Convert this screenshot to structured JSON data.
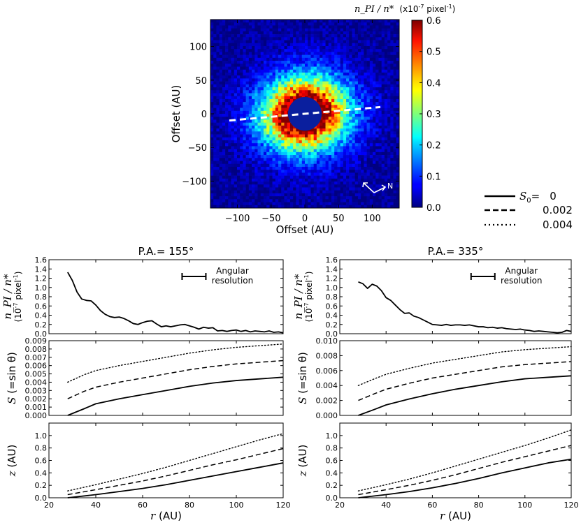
{
  "image_panel": {
    "xlabel": "Offset (AU)",
    "ylabel": "Offset (AU)",
    "xticks": [
      -100,
      -50,
      0,
      50,
      100
    ],
    "yticks": [
      -100,
      -50,
      0,
      50,
      100
    ],
    "xlim": [
      -140,
      140
    ],
    "ylim": [
      -140,
      140
    ],
    "mask_radius_au": 25,
    "compass_label": "N",
    "colorbar": {
      "label_main": "n_PI / n*",
      "label_unit_pre": "(x10",
      "label_unit_exp": "-7",
      "label_unit_mid": " pixel",
      "label_unit_exp2": "-1",
      "label_unit_post": ")",
      "range": [
        0.0,
        0.6
      ],
      "ticks": [
        "0.0",
        "0.1",
        "0.2",
        "0.3",
        "0.4",
        "0.5",
        "0.6"
      ]
    }
  },
  "legend": {
    "title_var": "S",
    "title_sub": "0",
    "title_eq": "=",
    "entries": [
      {
        "style": "solid",
        "label": "0"
      },
      {
        "style": "dashed",
        "label": "0.002"
      },
      {
        "style": "dotted",
        "label": "0.004"
      }
    ]
  },
  "chart_data": [
    {
      "type": "line",
      "panel": "left-top",
      "title": "P.A.= 155°",
      "ylabel_main": "n_PI / n*",
      "ylabel_unit": "(10-7 pixel-1)",
      "annotation": "Angular resolution",
      "xlim": [
        20,
        120
      ],
      "ylim": [
        0,
        1.6
      ],
      "yticks": [
        "0.0",
        "0.2",
        "0.4",
        "0.6",
        "0.8",
        "1.0",
        "1.2",
        "1.4",
        "1.6"
      ],
      "series": [
        {
          "name": "n_PI",
          "style": "solid",
          "x": [
            28,
            30,
            32,
            34,
            36,
            38,
            40,
            42,
            44,
            46,
            48,
            50,
            52,
            54,
            56,
            58,
            60,
            62,
            64,
            66,
            68,
            70,
            72,
            74,
            76,
            78,
            80,
            82,
            84,
            86,
            88,
            90,
            92,
            94,
            96,
            98,
            100,
            102,
            104,
            106,
            108,
            110,
            112,
            114,
            116,
            118,
            120
          ],
          "y": [
            1.33,
            1.15,
            0.9,
            0.75,
            0.72,
            0.71,
            0.62,
            0.5,
            0.42,
            0.37,
            0.35,
            0.36,
            0.33,
            0.28,
            0.22,
            0.2,
            0.24,
            0.27,
            0.28,
            0.21,
            0.15,
            0.17,
            0.15,
            0.17,
            0.19,
            0.2,
            0.17,
            0.14,
            0.1,
            0.14,
            0.12,
            0.13,
            0.06,
            0.07,
            0.05,
            0.07,
            0.08,
            0.05,
            0.07,
            0.04,
            0.06,
            0.05,
            0.04,
            0.06,
            0.03,
            0.04,
            0.02
          ]
        }
      ]
    },
    {
      "type": "line",
      "panel": "left-middle",
      "ylabel": "S (=sin θ)",
      "xlim": [
        20,
        120
      ],
      "ylim": [
        0,
        0.009
      ],
      "yticks": [
        "0.000",
        "0.001",
        "0.002",
        "0.003",
        "0.004",
        "0.005",
        "0.006",
        "0.007",
        "0.008",
        "0.009"
      ],
      "series": [
        {
          "name": "S0=0",
          "style": "solid",
          "x": [
            28,
            35,
            40,
            50,
            60,
            70,
            80,
            90,
            100,
            110,
            120
          ],
          "y": [
            0.0,
            0.0008,
            0.0014,
            0.002,
            0.0025,
            0.003,
            0.0035,
            0.0039,
            0.0042,
            0.0044,
            0.0046
          ]
        },
        {
          "name": "S0=0.002",
          "style": "dashed",
          "x": [
            28,
            35,
            40,
            50,
            60,
            70,
            80,
            90,
            100,
            110,
            120
          ],
          "y": [
            0.002,
            0.0029,
            0.0034,
            0.004,
            0.0045,
            0.005,
            0.0055,
            0.0059,
            0.0062,
            0.0064,
            0.0066
          ]
        },
        {
          "name": "S0=0.004",
          "style": "dotted",
          "x": [
            28,
            35,
            40,
            50,
            60,
            70,
            80,
            90,
            100,
            110,
            120
          ],
          "y": [
            0.004,
            0.0049,
            0.0054,
            0.006,
            0.0065,
            0.007,
            0.0075,
            0.0079,
            0.0082,
            0.0084,
            0.0086
          ]
        }
      ]
    },
    {
      "type": "line",
      "panel": "left-bottom",
      "ylabel": "z (AU)",
      "xlabel": "r (AU)",
      "xlim": [
        20,
        120
      ],
      "ylim": [
        0,
        1.2
      ],
      "xticks": [
        "20",
        "40",
        "60",
        "80",
        "100",
        "120"
      ],
      "yticks": [
        "0.0",
        "0.2",
        "0.4",
        "0.6",
        "0.8",
        "1.0"
      ],
      "series": [
        {
          "name": "S0=0",
          "style": "solid",
          "x": [
            28,
            40,
            50,
            60,
            70,
            80,
            90,
            100,
            110,
            120
          ],
          "y": [
            0.0,
            0.05,
            0.1,
            0.15,
            0.21,
            0.28,
            0.35,
            0.42,
            0.49,
            0.56
          ]
        },
        {
          "name": "S0=0.002",
          "style": "dashed",
          "x": [
            28,
            40,
            50,
            60,
            70,
            80,
            90,
            100,
            110,
            120
          ],
          "y": [
            0.05,
            0.13,
            0.2,
            0.27,
            0.35,
            0.44,
            0.53,
            0.61,
            0.7,
            0.79
          ]
        },
        {
          "name": "S0=0.004",
          "style": "dotted",
          "x": [
            28,
            40,
            50,
            60,
            70,
            80,
            90,
            100,
            110,
            120
          ],
          "y": [
            0.11,
            0.21,
            0.3,
            0.39,
            0.49,
            0.6,
            0.71,
            0.82,
            0.93,
            1.03
          ]
        }
      ]
    },
    {
      "type": "line",
      "panel": "right-top",
      "title": "P.A.= 335°",
      "ylabel_main": "n_PI / n*",
      "ylabel_unit": "(10-7 pixel-1)",
      "annotation": "Angular resolution",
      "xlim": [
        20,
        120
      ],
      "ylim": [
        0,
        1.6
      ],
      "yticks": [
        "0.0",
        "0.2",
        "0.4",
        "0.6",
        "0.8",
        "1.0",
        "1.2",
        "1.4",
        "1.6"
      ],
      "series": [
        {
          "name": "n_PI",
          "style": "solid",
          "x": [
            28,
            30,
            32,
            34,
            36,
            38,
            40,
            42,
            44,
            46,
            48,
            50,
            52,
            54,
            56,
            58,
            60,
            62,
            64,
            66,
            68,
            70,
            72,
            74,
            76,
            78,
            80,
            82,
            84,
            86,
            88,
            90,
            92,
            94,
            96,
            98,
            100,
            102,
            104,
            106,
            108,
            110,
            112,
            114,
            116,
            118,
            120
          ],
          "y": [
            1.12,
            1.08,
            0.98,
            1.07,
            1.03,
            0.93,
            0.78,
            0.72,
            0.62,
            0.52,
            0.44,
            0.45,
            0.38,
            0.35,
            0.3,
            0.25,
            0.2,
            0.19,
            0.18,
            0.2,
            0.18,
            0.19,
            0.19,
            0.18,
            0.19,
            0.17,
            0.15,
            0.15,
            0.13,
            0.14,
            0.12,
            0.13,
            0.11,
            0.1,
            0.09,
            0.1,
            0.08,
            0.07,
            0.05,
            0.06,
            0.05,
            0.04,
            0.03,
            0.02,
            0.03,
            0.07,
            0.05
          ]
        }
      ]
    },
    {
      "type": "line",
      "panel": "right-middle",
      "ylabel": "S (=sin θ)",
      "xlim": [
        20,
        120
      ],
      "ylim": [
        0,
        0.01
      ],
      "yticks": [
        "0.000",
        "0.002",
        "0.004",
        "0.006",
        "0.008",
        "0.010"
      ],
      "series": [
        {
          "name": "S0=0",
          "style": "solid",
          "x": [
            28,
            35,
            40,
            50,
            60,
            70,
            80,
            90,
            100,
            110,
            120
          ],
          "y": [
            0.0,
            0.0008,
            0.0014,
            0.0022,
            0.0029,
            0.0035,
            0.004,
            0.0045,
            0.0049,
            0.0051,
            0.0053
          ]
        },
        {
          "name": "S0=0.002",
          "style": "dashed",
          "x": [
            28,
            35,
            40,
            50,
            60,
            70,
            80,
            90,
            100,
            110,
            120
          ],
          "y": [
            0.002,
            0.0029,
            0.0035,
            0.0043,
            0.005,
            0.0055,
            0.006,
            0.0065,
            0.0068,
            0.007,
            0.0072
          ]
        },
        {
          "name": "S0=0.004",
          "style": "dotted",
          "x": [
            28,
            35,
            40,
            50,
            60,
            70,
            80,
            90,
            100,
            110,
            120
          ],
          "y": [
            0.004,
            0.0049,
            0.0055,
            0.0063,
            0.007,
            0.0075,
            0.008,
            0.0085,
            0.0088,
            0.009,
            0.0092
          ]
        }
      ]
    },
    {
      "type": "line",
      "panel": "right-bottom",
      "ylabel": "z (AU)",
      "xlabel": "r (AU)",
      "xlim": [
        20,
        120
      ],
      "ylim": [
        0,
        1.2
      ],
      "xticks": [
        "20",
        "40",
        "60",
        "80",
        "100",
        "120"
      ],
      "yticks": [
        "0.0",
        "0.2",
        "0.4",
        "0.6",
        "0.8",
        "1.0"
      ],
      "series": [
        {
          "name": "S0=0",
          "style": "solid",
          "x": [
            28,
            40,
            50,
            60,
            70,
            80,
            90,
            100,
            110,
            120
          ],
          "y": [
            0.0,
            0.05,
            0.1,
            0.16,
            0.23,
            0.31,
            0.4,
            0.48,
            0.56,
            0.62
          ]
        },
        {
          "name": "S0=0.002",
          "style": "dashed",
          "x": [
            28,
            40,
            50,
            60,
            70,
            80,
            90,
            100,
            110,
            120
          ],
          "y": [
            0.05,
            0.13,
            0.2,
            0.28,
            0.37,
            0.47,
            0.57,
            0.66,
            0.75,
            0.84
          ]
        },
        {
          "name": "S0=0.004",
          "style": "dotted",
          "x": [
            28,
            40,
            50,
            60,
            70,
            80,
            90,
            100,
            110,
            120
          ],
          "y": [
            0.11,
            0.21,
            0.3,
            0.4,
            0.51,
            0.62,
            0.73,
            0.84,
            0.96,
            1.09
          ]
        }
      ]
    }
  ]
}
